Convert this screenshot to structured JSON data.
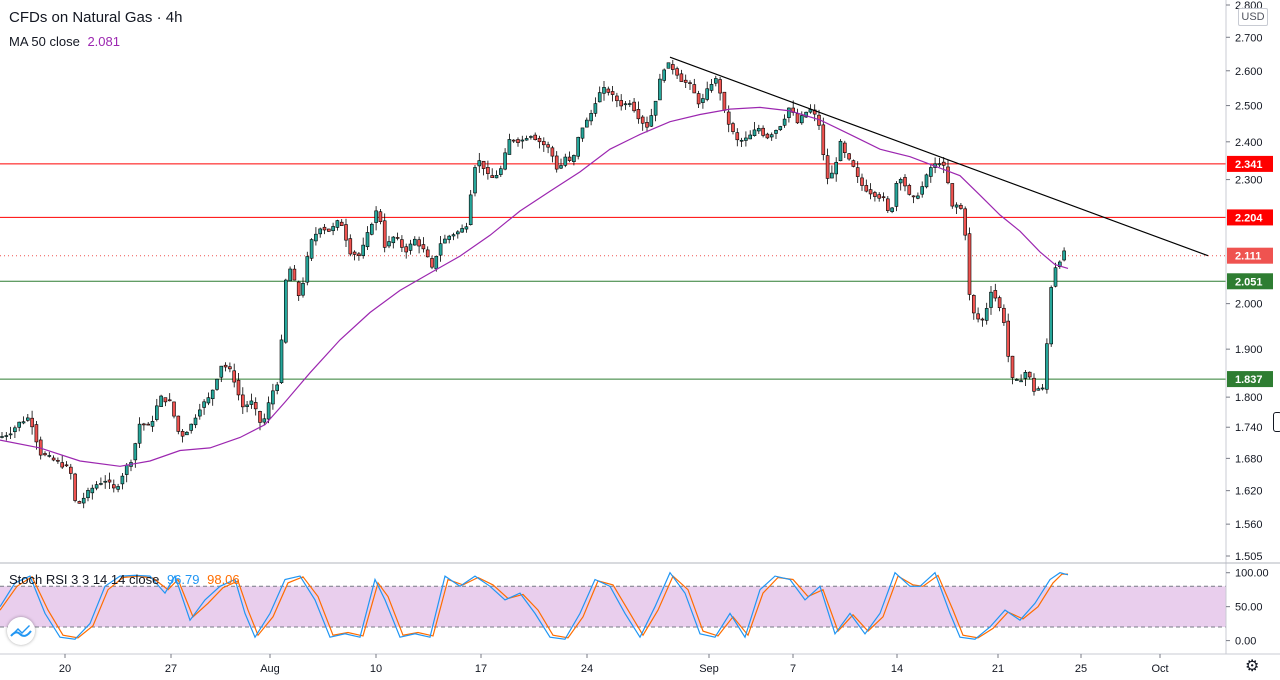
{
  "header": {
    "title": "CFDs on Natural Gas",
    "separator": "·",
    "interval": "4h",
    "ma_label": "MA 50 close",
    "ma_value": "2.081",
    "stoch_label": "Stoch RSI 3 3 14 14 close",
    "stoch_k_value": "96.79",
    "stoch_d_value": "98.06",
    "currency": "USD"
  },
  "colors": {
    "up_candle": "#26a69a",
    "down_candle": "#ef5350",
    "candle_outline": "#000000",
    "ma_line": "#9c27b0",
    "resistance": "#ff0000",
    "support": "#2e7d32",
    "trendline": "#000000",
    "stoch_k": "#2196f3",
    "stoch_d": "#ff6d00",
    "stoch_band": "#e1bee7"
  },
  "chart_data": [
    {
      "type": "candlestick",
      "title": "CFDs on Natural Gas · 4h",
      "x_ticks": [
        "20",
        "27",
        "Aug",
        "10",
        "17",
        "24",
        "Sep",
        "7",
        "14",
        "21",
        "25",
        "Oct"
      ],
      "y_ticks": [
        "1.505",
        "1.560",
        "1.620",
        "1.680",
        "1.740",
        "1.800",
        "1.900",
        "2.000",
        "2.300",
        "2.400",
        "2.500",
        "2.600",
        "2.700",
        "2.800"
      ],
      "ylim": [
        1.505,
        2.8
      ],
      "scale": "log",
      "grid": false,
      "price_path": [
        [
          0,
          1.72
        ],
        [
          10,
          1.73
        ],
        [
          20,
          1.75
        ],
        [
          30,
          1.76
        ],
        [
          40,
          1.69
        ],
        [
          50,
          1.68
        ],
        [
          60,
          1.67
        ],
        [
          70,
          1.66
        ],
        [
          76,
          1.59
        ],
        [
          85,
          1.61
        ],
        [
          95,
          1.63
        ],
        [
          105,
          1.64
        ],
        [
          115,
          1.62
        ],
        [
          125,
          1.66
        ],
        [
          132,
          1.68
        ],
        [
          140,
          1.75
        ],
        [
          150,
          1.74
        ],
        [
          160,
          1.8
        ],
        [
          170,
          1.79
        ],
        [
          180,
          1.72
        ],
        [
          190,
          1.74
        ],
        [
          200,
          1.78
        ],
        [
          210,
          1.8
        ],
        [
          222,
          1.87
        ],
        [
          232,
          1.85
        ],
        [
          242,
          1.78
        ],
        [
          252,
          1.79
        ],
        [
          262,
          1.74
        ],
        [
          272,
          1.81
        ],
        [
          280,
          1.84
        ],
        [
          284,
          2.04
        ],
        [
          290,
          2.08
        ],
        [
          300,
          2.01
        ],
        [
          310,
          2.14
        ],
        [
          320,
          2.18
        ],
        [
          330,
          2.17
        ],
        [
          340,
          2.2
        ],
        [
          350,
          2.12
        ],
        [
          360,
          2.11
        ],
        [
          370,
          2.18
        ],
        [
          378,
          2.23
        ],
        [
          385,
          2.13
        ],
        [
          395,
          2.16
        ],
        [
          405,
          2.12
        ],
        [
          415,
          2.15
        ],
        [
          425,
          2.12
        ],
        [
          432,
          2.08
        ],
        [
          440,
          2.14
        ],
        [
          450,
          2.16
        ],
        [
          460,
          2.17
        ],
        [
          468,
          2.19
        ],
        [
          473,
          2.33
        ],
        [
          480,
          2.35
        ],
        [
          490,
          2.3
        ],
        [
          500,
          2.32
        ],
        [
          510,
          2.41
        ],
        [
          520,
          2.4
        ],
        [
          530,
          2.42
        ],
        [
          540,
          2.4
        ],
        [
          550,
          2.38
        ],
        [
          558,
          2.32
        ],
        [
          565,
          2.36
        ],
        [
          572,
          2.34
        ],
        [
          580,
          2.43
        ],
        [
          590,
          2.47
        ],
        [
          598,
          2.53
        ],
        [
          605,
          2.55
        ],
        [
          615,
          2.52
        ],
        [
          622,
          2.5
        ],
        [
          630,
          2.51
        ],
        [
          640,
          2.46
        ],
        [
          648,
          2.44
        ],
        [
          656,
          2.52
        ],
        [
          662,
          2.6
        ],
        [
          668,
          2.62
        ],
        [
          675,
          2.6
        ],
        [
          682,
          2.57
        ],
        [
          690,
          2.56
        ],
        [
          700,
          2.5
        ],
        [
          710,
          2.56
        ],
        [
          718,
          2.58
        ],
        [
          722,
          2.5
        ],
        [
          730,
          2.44
        ],
        [
          738,
          2.4
        ],
        [
          748,
          2.41
        ],
        [
          758,
          2.44
        ],
        [
          766,
          2.41
        ],
        [
          775,
          2.43
        ],
        [
          782,
          2.45
        ],
        [
          790,
          2.5
        ],
        [
          797,
          2.45
        ],
        [
          805,
          2.48
        ],
        [
          812,
          2.49
        ],
        [
          820,
          2.44
        ],
        [
          826,
          2.3
        ],
        [
          834,
          2.32
        ],
        [
          840,
          2.4
        ],
        [
          846,
          2.36
        ],
        [
          852,
          2.34
        ],
        [
          860,
          2.29
        ],
        [
          868,
          2.27
        ],
        [
          876,
          2.26
        ],
        [
          884,
          2.25
        ],
        [
          890,
          2.2
        ],
        [
          896,
          2.29
        ],
        [
          902,
          2.31
        ],
        [
          908,
          2.26
        ],
        [
          915,
          2.25
        ],
        [
          922,
          2.28
        ],
        [
          930,
          2.33
        ],
        [
          936,
          2.34
        ],
        [
          942,
          2.35
        ],
        [
          948,
          2.29
        ],
        [
          953,
          2.22
        ],
        [
          958,
          2.24
        ],
        [
          962,
          2.22
        ],
        [
          966,
          2.15
        ],
        [
          970,
          2.0
        ],
        [
          975,
          1.97
        ],
        [
          982,
          1.96
        ],
        [
          988,
          2.0
        ],
        [
          992,
          2.04
        ],
        [
          997,
          2.0
        ],
        [
          1002,
          1.98
        ],
        [
          1006,
          1.94
        ],
        [
          1010,
          1.84
        ],
        [
          1016,
          1.83
        ],
        [
          1022,
          1.84
        ],
        [
          1028,
          1.86
        ],
        [
          1032,
          1.81
        ],
        [
          1037,
          1.82
        ],
        [
          1042,
          1.81
        ],
        [
          1045,
          1.84
        ],
        [
          1049,
          1.99
        ],
        [
          1053,
          2.08
        ],
        [
          1058,
          2.09
        ],
        [
          1063,
          2.12
        ],
        [
          1068,
          2.11
        ]
      ],
      "moving_average_path": [
        [
          0,
          1.715
        ],
        [
          40,
          1.7
        ],
        [
          80,
          1.675
        ],
        [
          120,
          1.665
        ],
        [
          150,
          1.675
        ],
        [
          180,
          1.695
        ],
        [
          210,
          1.7
        ],
        [
          240,
          1.72
        ],
        [
          265,
          1.745
        ],
        [
          285,
          1.79
        ],
        [
          310,
          1.85
        ],
        [
          340,
          1.92
        ],
        [
          370,
          1.98
        ],
        [
          400,
          2.03
        ],
        [
          430,
          2.07
        ],
        [
          460,
          2.11
        ],
        [
          490,
          2.16
        ],
        [
          520,
          2.22
        ],
        [
          550,
          2.27
        ],
        [
          580,
          2.32
        ],
        [
          610,
          2.38
        ],
        [
          640,
          2.42
        ],
        [
          670,
          2.455
        ],
        [
          700,
          2.475
        ],
        [
          730,
          2.49
        ],
        [
          760,
          2.495
        ],
        [
          790,
          2.485
        ],
        [
          820,
          2.46
        ],
        [
          850,
          2.42
        ],
        [
          880,
          2.38
        ],
        [
          910,
          2.36
        ],
        [
          940,
          2.33
        ],
        [
          960,
          2.31
        ],
        [
          980,
          2.26
        ],
        [
          1000,
          2.21
        ],
        [
          1020,
          2.17
        ],
        [
          1040,
          2.12
        ],
        [
          1055,
          2.09
        ],
        [
          1068,
          2.081
        ]
      ],
      "levels": [
        {
          "label": "2.341",
          "value": 2.341,
          "kind": "resistance"
        },
        {
          "label": "2.204",
          "value": 2.204,
          "kind": "resistance"
        },
        {
          "label": "2.051",
          "value": 2.051,
          "kind": "support"
        },
        {
          "label": "1.837",
          "value": 1.837,
          "kind": "support"
        }
      ],
      "current_price": {
        "label": "2.111",
        "value": 2.111
      },
      "trendline": [
        [
          670,
          2.64
        ],
        [
          1208,
          2.111
        ]
      ]
    },
    {
      "type": "line",
      "title": "Stoch RSI 3 3 14 14 close",
      "y_ticks": [
        "100.00",
        "50.00",
        "0.00"
      ],
      "ylim": [
        -5,
        104
      ],
      "band": [
        20,
        80
      ],
      "k_path": [
        [
          0,
          50
        ],
        [
          15,
          85
        ],
        [
          30,
          95
        ],
        [
          45,
          40
        ],
        [
          60,
          5
        ],
        [
          75,
          2
        ],
        [
          90,
          25
        ],
        [
          105,
          80
        ],
        [
          120,
          95
        ],
        [
          135,
          96
        ],
        [
          150,
          95
        ],
        [
          165,
          70
        ],
        [
          175,
          95
        ],
        [
          190,
          30
        ],
        [
          205,
          60
        ],
        [
          220,
          80
        ],
        [
          235,
          90
        ],
        [
          245,
          40
        ],
        [
          255,
          5
        ],
        [
          270,
          40
        ],
        [
          285,
          90
        ],
        [
          300,
          95
        ],
        [
          315,
          60
        ],
        [
          330,
          5
        ],
        [
          345,
          10
        ],
        [
          360,
          5
        ],
        [
          375,
          90
        ],
        [
          385,
          60
        ],
        [
          400,
          5
        ],
        [
          415,
          10
        ],
        [
          430,
          5
        ],
        [
          445,
          95
        ],
        [
          460,
          80
        ],
        [
          475,
          95
        ],
        [
          490,
          80
        ],
        [
          505,
          60
        ],
        [
          520,
          70
        ],
        [
          535,
          40
        ],
        [
          550,
          5
        ],
        [
          565,
          2
        ],
        [
          580,
          40
        ],
        [
          595,
          90
        ],
        [
          610,
          80
        ],
        [
          625,
          40
        ],
        [
          640,
          5
        ],
        [
          655,
          50
        ],
        [
          670,
          100
        ],
        [
          685,
          70
        ],
        [
          700,
          10
        ],
        [
          715,
          5
        ],
        [
          730,
          40
        ],
        [
          745,
          5
        ],
        [
          760,
          75
        ],
        [
          775,
          95
        ],
        [
          790,
          90
        ],
        [
          805,
          60
        ],
        [
          820,
          80
        ],
        [
          835,
          10
        ],
        [
          850,
          40
        ],
        [
          865,
          10
        ],
        [
          880,
          40
        ],
        [
          895,
          100
        ],
        [
          910,
          80
        ],
        [
          920,
          80
        ],
        [
          935,
          100
        ],
        [
          950,
          40
        ],
        [
          960,
          5
        ],
        [
          975,
          2
        ],
        [
          990,
          20
        ],
        [
          1005,
          45
        ],
        [
          1020,
          30
        ],
        [
          1035,
          55
        ],
        [
          1050,
          90
        ],
        [
          1060,
          100
        ],
        [
          1068,
          97
        ]
      ],
      "d_path": [
        [
          0,
          45
        ],
        [
          17,
          80
        ],
        [
          32,
          94
        ],
        [
          48,
          45
        ],
        [
          63,
          8
        ],
        [
          78,
          4
        ],
        [
          93,
          22
        ],
        [
          108,
          75
        ],
        [
          123,
          93
        ],
        [
          138,
          95
        ],
        [
          153,
          92
        ],
        [
          168,
          75
        ],
        [
          178,
          90
        ],
        [
          193,
          35
        ],
        [
          208,
          55
        ],
        [
          223,
          78
        ],
        [
          238,
          88
        ],
        [
          248,
          45
        ],
        [
          258,
          8
        ],
        [
          273,
          35
        ],
        [
          288,
          85
        ],
        [
          303,
          94
        ],
        [
          318,
          65
        ],
        [
          333,
          8
        ],
        [
          348,
          12
        ],
        [
          363,
          7
        ],
        [
          378,
          85
        ],
        [
          388,
          65
        ],
        [
          403,
          8
        ],
        [
          418,
          12
        ],
        [
          433,
          7
        ],
        [
          448,
          90
        ],
        [
          463,
          82
        ],
        [
          478,
          93
        ],
        [
          493,
          82
        ],
        [
          508,
          62
        ],
        [
          523,
          68
        ],
        [
          538,
          45
        ],
        [
          553,
          8
        ],
        [
          568,
          4
        ],
        [
          583,
          35
        ],
        [
          598,
          88
        ],
        [
          613,
          82
        ],
        [
          628,
          45
        ],
        [
          643,
          8
        ],
        [
          658,
          45
        ],
        [
          673,
          95
        ],
        [
          688,
          75
        ],
        [
          703,
          14
        ],
        [
          718,
          7
        ],
        [
          733,
          35
        ],
        [
          748,
          8
        ],
        [
          763,
          70
        ],
        [
          778,
          93
        ],
        [
          793,
          90
        ],
        [
          808,
          65
        ],
        [
          823,
          75
        ],
        [
          838,
          14
        ],
        [
          853,
          38
        ],
        [
          868,
          14
        ],
        [
          883,
          35
        ],
        [
          898,
          95
        ],
        [
          913,
          82
        ],
        [
          923,
          80
        ],
        [
          938,
          96
        ],
        [
          953,
          45
        ],
        [
          963,
          8
        ],
        [
          978,
          4
        ],
        [
          993,
          18
        ],
        [
          1008,
          42
        ],
        [
          1023,
          32
        ],
        [
          1038,
          50
        ],
        [
          1053,
          85
        ],
        [
          1062,
          98
        ],
        [
          1068,
          98
        ]
      ]
    }
  ]
}
